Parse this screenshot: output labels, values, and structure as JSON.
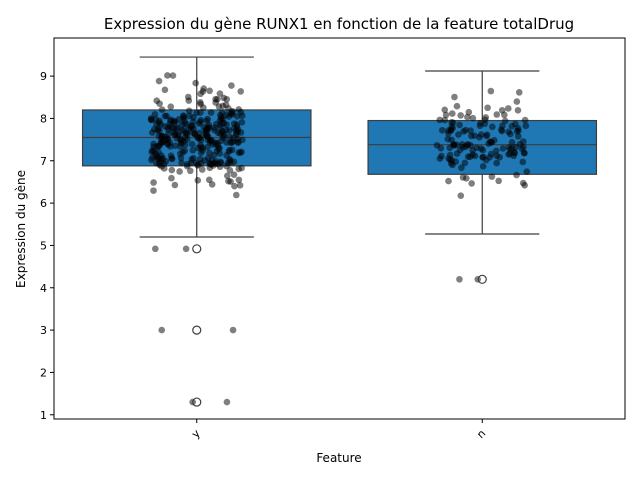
{
  "chart_data": {
    "type": "box",
    "title": "Expression du gène RUNX1 en fonction de la feature totalDrug",
    "xlabel": "Feature",
    "ylabel": "Expression du gène",
    "categories": [
      "y",
      "n"
    ],
    "ylim": [
      0.9,
      9.9
    ],
    "yticks": [
      1,
      2,
      3,
      4,
      5,
      6,
      7,
      8,
      9
    ],
    "grid": false,
    "box_color": "#1f77b4",
    "point_color": "#000000",
    "boxes": [
      {
        "category": "y",
        "whisker_low": 5.2,
        "q1": 6.88,
        "median": 7.55,
        "q3": 8.2,
        "whisker_high": 9.45,
        "outliers": [
          4.92,
          3.0,
          1.3
        ],
        "jitter_points": {
          "count": 320,
          "min": 5.2,
          "max": 9.45,
          "center": 7.55,
          "spread": 0.75,
          "extras": [
            4.92,
            4.92,
            3.0,
            3.0,
            1.3,
            1.3
          ]
        }
      },
      {
        "category": "n",
        "whisker_low": 5.27,
        "q1": 6.68,
        "median": 7.38,
        "q3": 7.95,
        "whisker_high": 9.12,
        "outliers": [
          4.2
        ],
        "jitter_points": {
          "count": 140,
          "min": 5.27,
          "max": 9.12,
          "center": 7.38,
          "spread": 0.7,
          "extras": [
            4.2,
            4.2
          ]
        }
      }
    ]
  }
}
